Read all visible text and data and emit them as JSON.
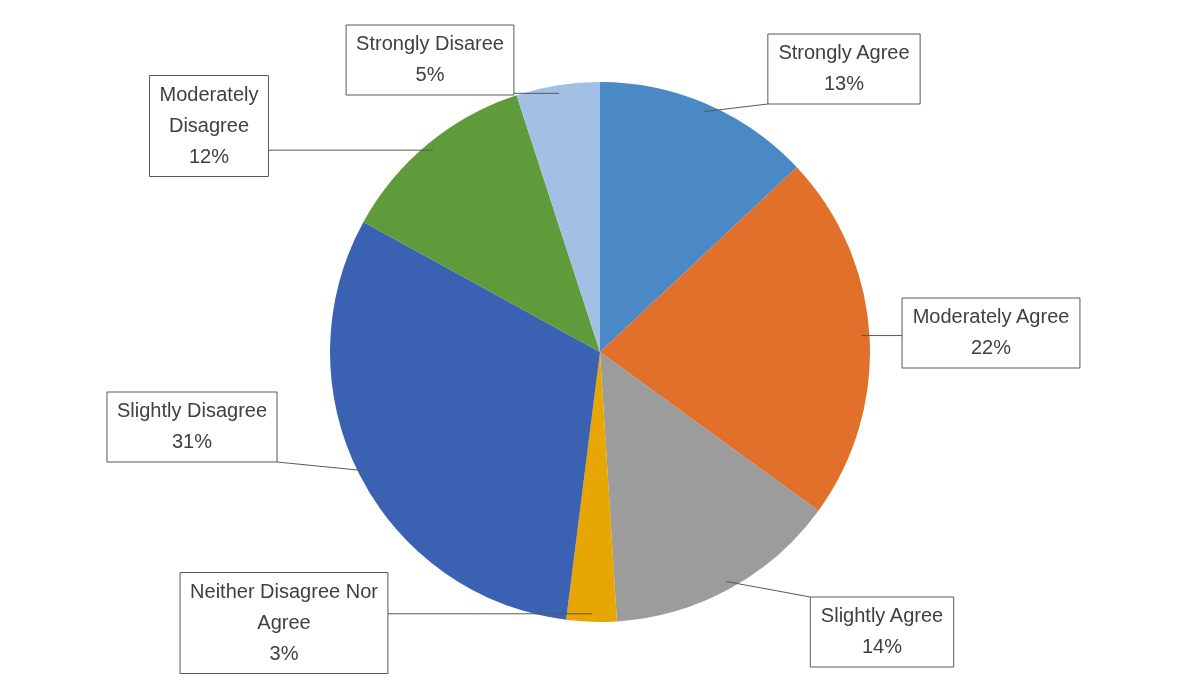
{
  "chart_data": {
    "type": "pie",
    "categories": [
      "Strongly Agree",
      "Moderately Agree",
      "Slightly Agree",
      "Neither Disagree Nor Agree",
      "Slightly Disagree",
      "Moderately Disagree",
      "Strongly Disaree"
    ],
    "values": [
      13,
      22,
      14,
      3,
      31,
      12,
      5
    ],
    "colors": [
      "#4a89c6",
      "#e0702a",
      "#9c9c9c",
      "#e8a602",
      "#3b62b2",
      "#5f9b3b",
      "#a2c0e4"
    ],
    "value_labels": [
      "13%",
      "22%",
      "14%",
      "3%",
      "31%",
      "12%",
      "5%"
    ]
  }
}
